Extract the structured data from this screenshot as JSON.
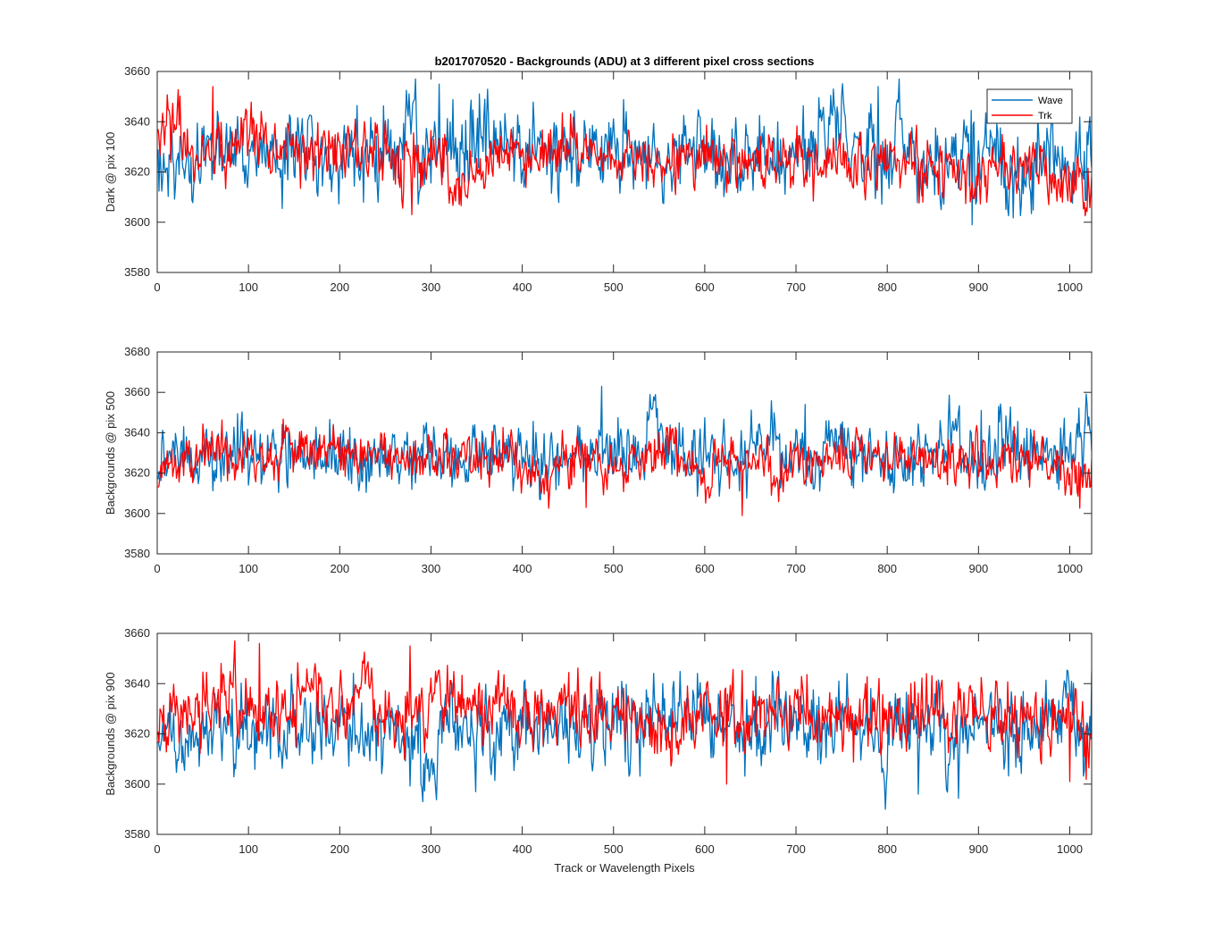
{
  "colors": {
    "wave": "#0072BD",
    "trk": "#FF0000",
    "axis": "#262626",
    "background": "#FFFFFF"
  },
  "chart_data": [
    {
      "type": "line",
      "title": "b2017070520 - Backgrounds (ADU) at 3 different pixel cross sections",
      "xlabel": "",
      "ylabel": "Dark @ pix 100",
      "xlim": [
        0,
        1024
      ],
      "ylim": [
        3580,
        3660
      ],
      "xticks": [
        0,
        100,
        200,
        300,
        400,
        500,
        600,
        700,
        800,
        900,
        1000
      ],
      "yticks": [
        3580,
        3600,
        3620,
        3640,
        3660
      ],
      "legend": {
        "placement": "top-right",
        "entries": [
          "Wave",
          "Trk"
        ]
      },
      "grid": false,
      "series": [
        {
          "name": "Wave",
          "color": "#0072BD",
          "mean": 3628,
          "spread": 8,
          "x": [
            0,
            64,
            128,
            192,
            256,
            309,
            384,
            448,
            512,
            576,
            640,
            704,
            790,
            832,
            893,
            960,
            1024
          ],
          "y": [
            3622,
            3630,
            3626,
            3628,
            3629,
            3655,
            3628,
            3627,
            3628,
            3627,
            3626,
            3627,
            3654,
            3626,
            3599,
            3625,
            3630
          ]
        },
        {
          "name": "Trk",
          "color": "#FF0000",
          "mean": 3627,
          "spread": 6,
          "x": [
            0,
            61,
            128,
            192,
            256,
            279,
            384,
            448,
            512,
            576,
            640,
            704,
            768,
            832,
            896,
            960,
            1024
          ],
          "y": [
            3632,
            3654,
            3628,
            3629,
            3628,
            3603,
            3627,
            3628,
            3626,
            3626,
            3624,
            3624,
            3624,
            3623,
            3623,
            3622,
            3612
          ]
        }
      ]
    },
    {
      "type": "line",
      "title": "",
      "xlabel": "",
      "ylabel": "Backgrounds @ pix 500",
      "xlim": [
        0,
        1024
      ],
      "ylim": [
        3580,
        3680
      ],
      "xticks": [
        0,
        100,
        200,
        300,
        400,
        500,
        600,
        700,
        800,
        900,
        1000
      ],
      "yticks": [
        3580,
        3600,
        3620,
        3640,
        3660,
        3680
      ],
      "grid": false,
      "series": [
        {
          "name": "Wave",
          "color": "#0072BD",
          "mean": 3628,
          "spread": 8,
          "x": [
            0,
            64,
            128,
            192,
            256,
            320,
            384,
            448,
            487,
            576,
            640,
            710,
            768,
            832,
            903,
            960,
            1024
          ],
          "y": [
            3626,
            3630,
            3629,
            3628,
            3628,
            3627,
            3628,
            3627,
            3663,
            3627,
            3626,
            3654,
            3626,
            3627,
            3651,
            3627,
            3640
          ]
        },
        {
          "name": "Trk",
          "color": "#FF0000",
          "mean": 3628,
          "spread": 6,
          "x": [
            0,
            64,
            128,
            192,
            256,
            320,
            384,
            470,
            512,
            576,
            641,
            704,
            768,
            832,
            896,
            960,
            1024
          ],
          "y": [
            3620,
            3632,
            3631,
            3632,
            3628,
            3627,
            3627,
            3603,
            3627,
            3627,
            3599,
            3627,
            3627,
            3627,
            3628,
            3627,
            3616
          ]
        }
      ]
    },
    {
      "type": "line",
      "title": "",
      "xlabel": "Track or Wavelength Pixels",
      "ylabel": "Backgrounds @ pix 900",
      "xlim": [
        0,
        1024
      ],
      "ylim": [
        3580,
        3660
      ],
      "xticks": [
        0,
        100,
        200,
        300,
        400,
        500,
        600,
        700,
        800,
        900,
        1000
      ],
      "yticks": [
        3580,
        3600,
        3620,
        3640,
        3660
      ],
      "grid": false,
      "series": [
        {
          "name": "Wave",
          "color": "#0072BD",
          "mean": 3624,
          "spread": 8,
          "x": [
            0,
            64,
            128,
            192,
            256,
            349,
            384,
            448,
            512,
            576,
            640,
            704,
            768,
            834,
            896,
            960,
            1024
          ],
          "y": [
            3624,
            3622,
            3623,
            3623,
            3624,
            3597,
            3624,
            3623,
            3624,
            3624,
            3624,
            3624,
            3623,
            3596,
            3623,
            3623,
            3645
          ]
        },
        {
          "name": "Trk",
          "color": "#FF0000",
          "mean": 3628,
          "spread": 7,
          "x": [
            0,
            64,
            112,
            192,
            277,
            320,
            384,
            448,
            512,
            624,
            640,
            704,
            768,
            832,
            896,
            960,
            1000,
            1024
          ],
          "y": [
            3626,
            3632,
            3656,
            3631,
            3655,
            3630,
            3629,
            3628,
            3628,
            3600,
            3627,
            3627,
            3627,
            3627,
            3627,
            3626,
            3601,
            3620
          ]
        }
      ]
    }
  ]
}
